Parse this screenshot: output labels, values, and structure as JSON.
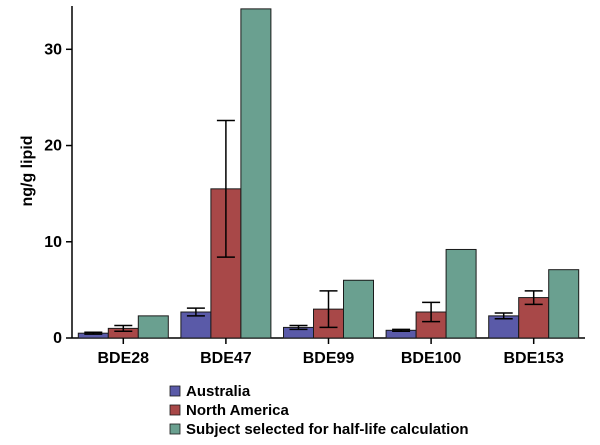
{
  "chart_data": {
    "type": "bar",
    "title": "",
    "xlabel": "",
    "ylabel": "ng/g lipid",
    "ylim": [
      0,
      34.5
    ],
    "yticks": [
      0,
      10,
      20,
      30
    ],
    "categories": [
      "BDE28",
      "BDE47",
      "BDE99",
      "BDE100",
      "BDE153"
    ],
    "series": [
      {
        "name": "Australia",
        "color": "#5a5aa8",
        "values": [
          0.5,
          2.7,
          1.1,
          0.8,
          2.3
        ],
        "errors": [
          0.1,
          0.4,
          0.2,
          0.1,
          0.3
        ]
      },
      {
        "name": "North America",
        "color": "#a84848",
        "values": [
          1.0,
          15.5,
          3.0,
          2.7,
          4.2
        ],
        "errors": [
          0.3,
          7.1,
          1.9,
          1.0,
          0.7
        ]
      },
      {
        "name": "Subject selected for half-life calculation",
        "color": "#6aa090",
        "values": [
          2.3,
          34.2,
          6.0,
          9.2,
          7.1
        ],
        "errors": null
      }
    ],
    "legend_position": "bottom-left"
  }
}
